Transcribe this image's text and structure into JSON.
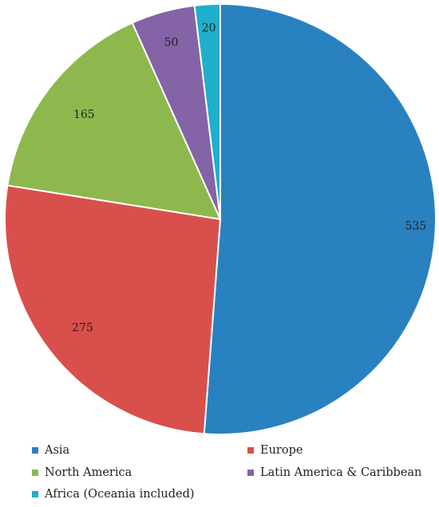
{
  "chart_data": {
    "type": "pie",
    "categories": [
      "Asia",
      "Europe",
      "North America",
      "Latin America & Caribbean",
      "Africa (Oceania included)"
    ],
    "values": [
      535,
      275,
      165,
      50,
      20
    ],
    "data_labels": [
      "535",
      "275",
      "165",
      "50",
      "20"
    ],
    "colors": [
      "#2A81C0",
      "#D94F4C",
      "#8EB84E",
      "#8463A6",
      "#1FAFCB"
    ],
    "start_angle_deg": 0,
    "direction": "clockwise",
    "legend_position": "bottom",
    "legend_columns": 2
  }
}
